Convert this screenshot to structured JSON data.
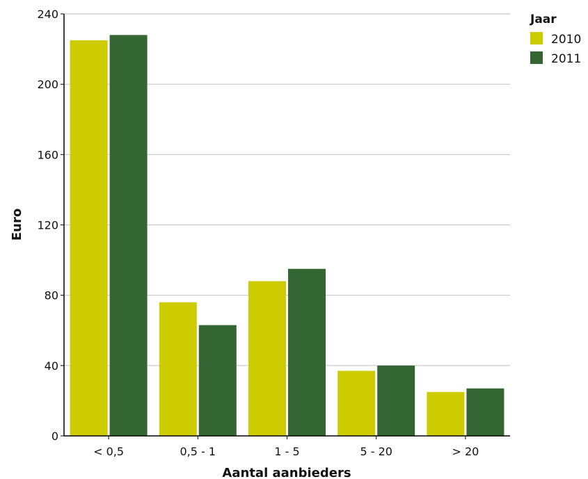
{
  "chart_data": {
    "type": "bar",
    "xlabel": "Aantal aanbieders",
    "ylabel": "Euro",
    "categories": [
      "< 0,5",
      "0,5 - 1",
      "1 - 5",
      "5 - 20",
      "> 20"
    ],
    "series": [
      {
        "name": "2010",
        "color": "#cccc00",
        "values": [
          225,
          76,
          88,
          37,
          25
        ]
      },
      {
        "name": "2011",
        "color": "#336633",
        "values": [
          228,
          63,
          95,
          40,
          27
        ]
      }
    ],
    "ylim": [
      0,
      240
    ],
    "yticks": [
      "0",
      "40",
      "80",
      "120",
      "160",
      "200",
      "240"
    ],
    "grid": true,
    "legend": {
      "title": "Jaar",
      "position": "top-right"
    }
  }
}
